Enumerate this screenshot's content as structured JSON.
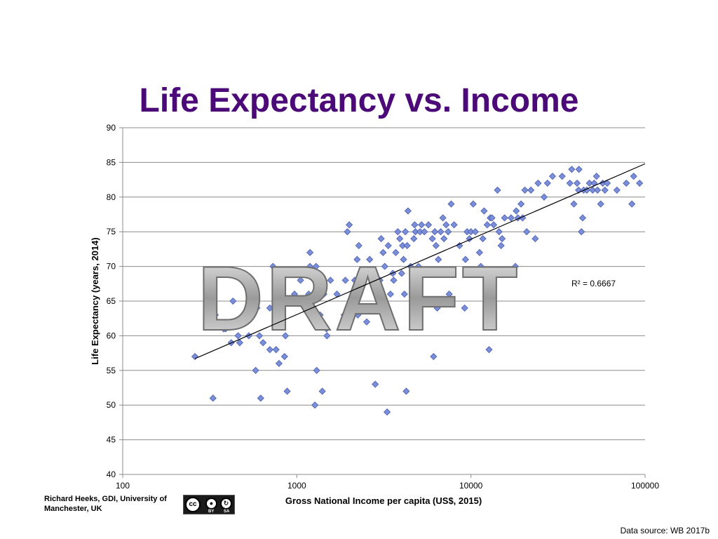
{
  "colors": {
    "title": "#4b0a78",
    "marker": "#7b8ed8",
    "marker_stroke": "#4a5eb0",
    "grid": "#8c8c8c",
    "watermark": "#a9a9a9"
  },
  "slide": {
    "title": "Life Expectancy vs. Income",
    "watermark": "DRAFT",
    "credit": "Richard Heeks, GDI, University of Manchester, UK",
    "cc_badge": {
      "cc": "cc",
      "by": "BY",
      "sa": "SA"
    },
    "source": "Data source: WB 2017b"
  },
  "chart_data": {
    "type": "scatter",
    "title": "",
    "xlabel": "Gross National Income per capita (US$, 2015)",
    "ylabel": "Life Expectancy (years, 2014)",
    "x_scale": "log",
    "xlim": [
      100,
      100000
    ],
    "ylim": [
      40,
      90
    ],
    "x_ticks": [
      100,
      1000,
      10000,
      100000
    ],
    "x_tick_labels": [
      "100",
      "1000",
      "10000",
      "100000"
    ],
    "y_ticks": [
      40,
      45,
      50,
      55,
      60,
      65,
      70,
      75,
      80,
      85,
      90
    ],
    "y_tick_labels": [
      "40",
      "45",
      "50",
      "55",
      "60",
      "65",
      "70",
      "75",
      "80",
      "85",
      "90"
    ],
    "grid": "horizontal",
    "annotation": "R² = 0.6667",
    "trendline": {
      "type": "log",
      "x": [
        260,
        100000
      ],
      "y": [
        56.7,
        84.8
      ]
    },
    "points": [
      [
        260,
        57
      ],
      [
        330,
        51
      ],
      [
        340,
        63
      ],
      [
        380,
        61
      ],
      [
        390,
        61
      ],
      [
        420,
        59
      ],
      [
        430,
        65
      ],
      [
        460,
        60
      ],
      [
        470,
        59
      ],
      [
        530,
        60
      ],
      [
        580,
        55
      ],
      [
        590,
        64
      ],
      [
        610,
        60
      ],
      [
        620,
        51
      ],
      [
        640,
        59
      ],
      [
        700,
        64
      ],
      [
        700,
        58
      ],
      [
        730,
        70
      ],
      [
        760,
        58
      ],
      [
        790,
        56
      ],
      [
        800,
        63
      ],
      [
        820,
        63
      ],
      [
        850,
        57
      ],
      [
        860,
        60
      ],
      [
        880,
        52
      ],
      [
        900,
        65
      ],
      [
        970,
        66
      ],
      [
        1050,
        68
      ],
      [
        1140,
        64
      ],
      [
        1170,
        66
      ],
      [
        1190,
        72
      ],
      [
        1190,
        70
      ],
      [
        1270,
        50
      ],
      [
        1290,
        70
      ],
      [
        1300,
        55
      ],
      [
        1320,
        62
      ],
      [
        1360,
        63
      ],
      [
        1400,
        52
      ],
      [
        1430,
        66
      ],
      [
        1480,
        61
      ],
      [
        1490,
        60
      ],
      [
        1560,
        68
      ],
      [
        1700,
        66
      ],
      [
        1870,
        63
      ],
      [
        1900,
        68
      ],
      [
        1950,
        75
      ],
      [
        2000,
        76
      ],
      [
        2150,
        68
      ],
      [
        2220,
        71
      ],
      [
        2240,
        63
      ],
      [
        2270,
        73
      ],
      [
        2350,
        69
      ],
      [
        2520,
        62
      ],
      [
        2620,
        71
      ],
      [
        2820,
        53
      ],
      [
        3000,
        68
      ],
      [
        3050,
        74
      ],
      [
        3130,
        72
      ],
      [
        3200,
        70
      ],
      [
        3300,
        49
      ],
      [
        3350,
        73
      ],
      [
        3450,
        66
      ],
      [
        3560,
        69
      ],
      [
        3600,
        68
      ],
      [
        3700,
        72
      ],
      [
        3800,
        75
      ],
      [
        3900,
        74
      ],
      [
        4000,
        69
      ],
      [
        4050,
        73
      ],
      [
        4100,
        71
      ],
      [
        4150,
        66
      ],
      [
        4200,
        75
      ],
      [
        4250,
        52
      ],
      [
        4300,
        73
      ],
      [
        4350,
        78
      ],
      [
        4500,
        70
      ],
      [
        4700,
        74
      ],
      [
        4750,
        76
      ],
      [
        4800,
        75
      ],
      [
        5000,
        70
      ],
      [
        5100,
        75
      ],
      [
        5200,
        76
      ],
      [
        5300,
        65
      ],
      [
        5400,
        75
      ],
      [
        5700,
        76
      ],
      [
        5900,
        69
      ],
      [
        6000,
        74
      ],
      [
        6100,
        57
      ],
      [
        6200,
        75
      ],
      [
        6300,
        73
      ],
      [
        6400,
        64
      ],
      [
        6500,
        71
      ],
      [
        6700,
        75
      ],
      [
        6900,
        77
      ],
      [
        7000,
        74
      ],
      [
        7200,
        76
      ],
      [
        7400,
        75
      ],
      [
        7500,
        66
      ],
      [
        7700,
        79
      ],
      [
        8000,
        76
      ],
      [
        8600,
        73
      ],
      [
        9200,
        64
      ],
      [
        9300,
        71
      ],
      [
        9500,
        75
      ],
      [
        9800,
        74
      ],
      [
        10000,
        75
      ],
      [
        10300,
        79
      ],
      [
        10600,
        75
      ],
      [
        11200,
        72
      ],
      [
        11400,
        70
      ],
      [
        11700,
        74
      ],
      [
        11900,
        78
      ],
      [
        12400,
        76
      ],
      [
        12700,
        58
      ],
      [
        12900,
        77
      ],
      [
        13200,
        77
      ],
      [
        13500,
        76
      ],
      [
        14200,
        81
      ],
      [
        14500,
        75
      ],
      [
        14900,
        73
      ],
      [
        15100,
        74
      ],
      [
        15600,
        77
      ],
      [
        17000,
        77
      ],
      [
        18000,
        70
      ],
      [
        18200,
        78
      ],
      [
        18600,
        77
      ],
      [
        19400,
        79
      ],
      [
        19800,
        77
      ],
      [
        20400,
        81
      ],
      [
        20900,
        75
      ],
      [
        22100,
        81
      ],
      [
        23400,
        74
      ],
      [
        24300,
        82
      ],
      [
        26300,
        80
      ],
      [
        27500,
        82
      ],
      [
        29400,
        83
      ],
      [
        33400,
        83
      ],
      [
        37000,
        82
      ],
      [
        37900,
        84
      ],
      [
        39000,
        79
      ],
      [
        40700,
        82
      ],
      [
        41700,
        84
      ],
      [
        41500,
        81
      ],
      [
        43100,
        75
      ],
      [
        43800,
        77
      ],
      [
        44400,
        81
      ],
      [
        46300,
        81
      ],
      [
        47900,
        82
      ],
      [
        50000,
        81
      ],
      [
        51000,
        82
      ],
      [
        52600,
        83
      ],
      [
        53300,
        81
      ],
      [
        55600,
        79
      ],
      [
        57100,
        82
      ],
      [
        58800,
        81
      ],
      [
        60600,
        82
      ],
      [
        68900,
        81
      ],
      [
        78000,
        82
      ],
      [
        84000,
        79
      ],
      [
        86000,
        83
      ],
      [
        93000,
        82
      ]
    ]
  }
}
